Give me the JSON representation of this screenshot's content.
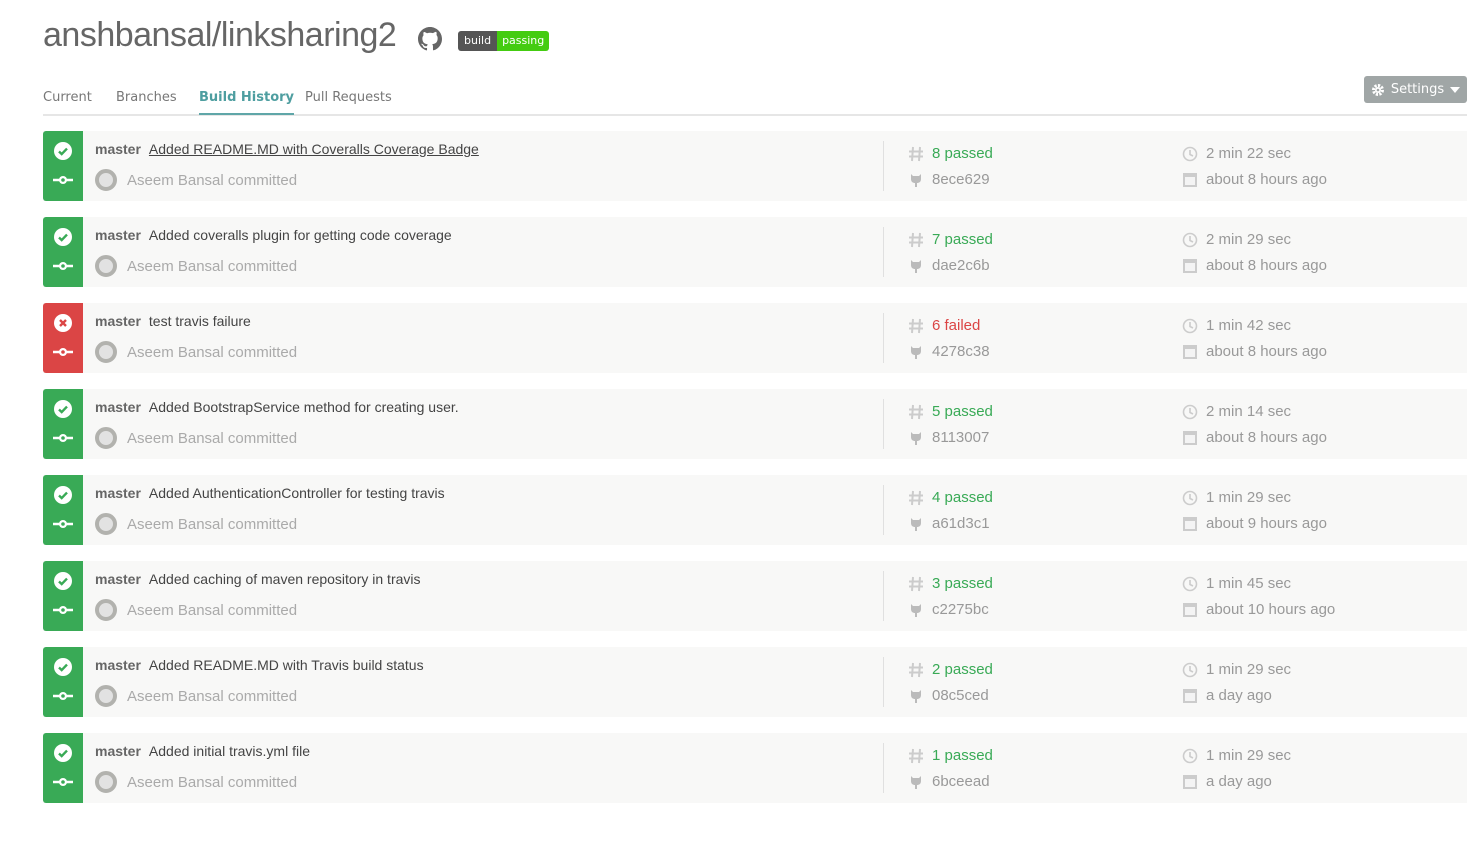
{
  "header": {
    "title": "anshbansal/linksharing2",
    "badge_left": "build",
    "badge_right": "passing",
    "github_icon": "github-icon"
  },
  "tabs": [
    {
      "label": "Current"
    },
    {
      "label": "Branches"
    },
    {
      "label": "Build History",
      "active": true
    },
    {
      "label": "Pull Requests"
    }
  ],
  "settings_label": "Settings",
  "colors": {
    "passed": "#39aa56",
    "failed": "#db4545",
    "accent": "#5fa6a8"
  },
  "builds": [
    {
      "status": "passed",
      "branch": "master",
      "message": "Added README.MD with Coveralls Coverage Badge",
      "author": "Aseem Bansal committed",
      "number": "8 passed",
      "commit": "8ece629",
      "duration": "2 min 22 sec",
      "finished": "about 8 hours ago"
    },
    {
      "status": "passed",
      "branch": "master",
      "message": "Added coveralls plugin for getting code coverage",
      "author": "Aseem Bansal committed",
      "number": "7 passed",
      "commit": "dae2c6b",
      "duration": "2 min 29 sec",
      "finished": "about 8 hours ago"
    },
    {
      "status": "failed",
      "branch": "master",
      "message": "test travis failure",
      "author": "Aseem Bansal committed",
      "number": "6 failed",
      "commit": "4278c38",
      "duration": "1 min 42 sec",
      "finished": "about 8 hours ago"
    },
    {
      "status": "passed",
      "branch": "master",
      "message": "Added BootstrapService method for creating user.",
      "author": "Aseem Bansal committed",
      "number": "5 passed",
      "commit": "8113007",
      "duration": "2 min 14 sec",
      "finished": "about 8 hours ago"
    },
    {
      "status": "passed",
      "branch": "master",
      "message": "Added AuthenticationController for testing travis",
      "author": "Aseem Bansal committed",
      "number": "4 passed",
      "commit": "a61d3c1",
      "duration": "1 min 29 sec",
      "finished": "about 9 hours ago"
    },
    {
      "status": "passed",
      "branch": "master",
      "message": "Added caching of maven repository in travis",
      "author": "Aseem Bansal committed",
      "number": "3 passed",
      "commit": "c2275bc",
      "duration": "1 min 45 sec",
      "finished": "about 10 hours ago"
    },
    {
      "status": "passed",
      "branch": "master",
      "message": "Added README.MD with Travis build status",
      "author": "Aseem Bansal committed",
      "number": "2 passed",
      "commit": "08c5ced",
      "duration": "1 min 29 sec",
      "finished": "a day ago"
    },
    {
      "status": "passed",
      "branch": "master",
      "message": "Added initial travis.yml file",
      "author": "Aseem Bansal committed",
      "number": "1 passed",
      "commit": "6bceead",
      "duration": "1 min 29 sec",
      "finished": "a day ago"
    }
  ]
}
